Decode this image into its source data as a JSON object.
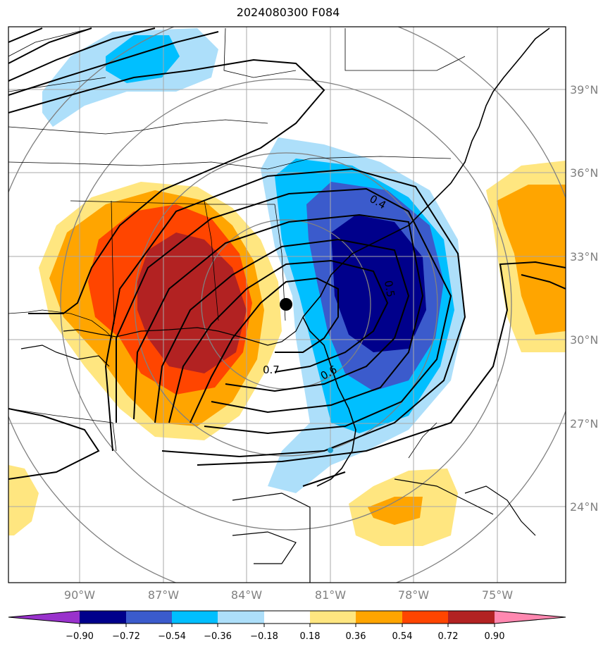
{
  "title": "2024080300 F084",
  "lat_labels": [
    "39°N",
    "36°N",
    "33°N",
    "30°N",
    "27°N",
    "24°N"
  ],
  "lon_labels": [
    "90°W",
    "87°W",
    "84°W",
    "81°W",
    "78°W",
    "75°W"
  ],
  "contour_labels": [
    "0.4",
    "0.5",
    "0.6",
    "0.7"
  ],
  "colorbar": {
    "ticks": [
      "−0.90",
      "−0.72",
      "−0.54",
      "−0.36",
      "−0.18",
      "0.18",
      "0.36",
      "0.54",
      "0.72",
      "0.90"
    ],
    "colors": {
      "under": "#9932CC",
      "c1": "#00008B",
      "c2": "#3B5BCC",
      "c3": "#00BFFF",
      "c4": "#ADDFFA",
      "c5": "#FFFFFF",
      "c6": "#FFE680",
      "c7": "#FFA500",
      "c8": "#FF4500",
      "c9": "#B22222",
      "over": "#FF88B0"
    }
  }
}
